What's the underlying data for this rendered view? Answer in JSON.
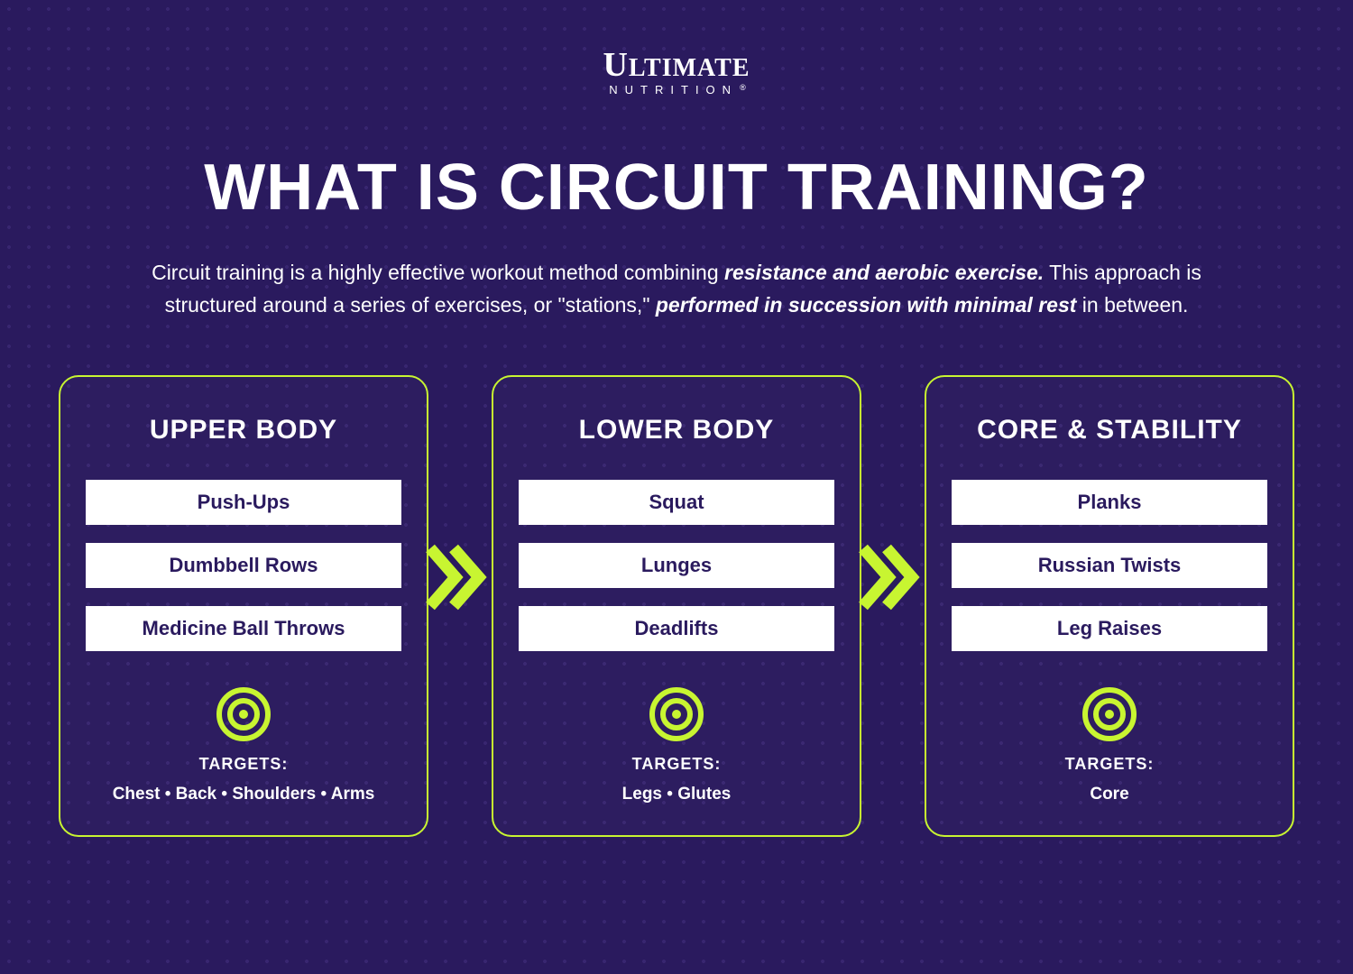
{
  "colors": {
    "background": "#2a1a5e",
    "accent": "#c8f531",
    "card_text": "#2a1a5e",
    "text": "#ffffff",
    "exercise_bg": "#ffffff"
  },
  "logo": {
    "top": "ULTIMATE",
    "bottom": "NUTRITION"
  },
  "title": "WHAT IS CIRCUIT TRAINING?",
  "description": {
    "parts": [
      {
        "text": "Circuit training is a highly effective workout method combining ",
        "bold": false
      },
      {
        "text": "resistance and aerobic exercise.",
        "bold": true
      },
      {
        "text": " This approach is structured around a series of exercises, or \"stations,\" ",
        "bold": false
      },
      {
        "text": "performed in succession with minimal rest",
        "bold": true
      },
      {
        "text": " in between.",
        "bold": false
      }
    ]
  },
  "targets_label": "TARGETS:",
  "target_separator": " • ",
  "cards": [
    {
      "title": "UPPER BODY",
      "exercises": [
        "Push-Ups",
        "Dumbbell Rows",
        "Medicine Ball Throws"
      ],
      "targets": [
        "Chest",
        "Back",
        "Shoulders",
        "Arms"
      ]
    },
    {
      "title": "LOWER BODY",
      "exercises": [
        "Squat",
        "Lunges",
        "Deadlifts"
      ],
      "targets": [
        "Legs",
        "Glutes"
      ]
    },
    {
      "title": "CORE & STABILITY",
      "exercises": [
        "Planks",
        "Russian Twists",
        "Leg Raises"
      ],
      "targets": [
        "Core"
      ]
    }
  ]
}
